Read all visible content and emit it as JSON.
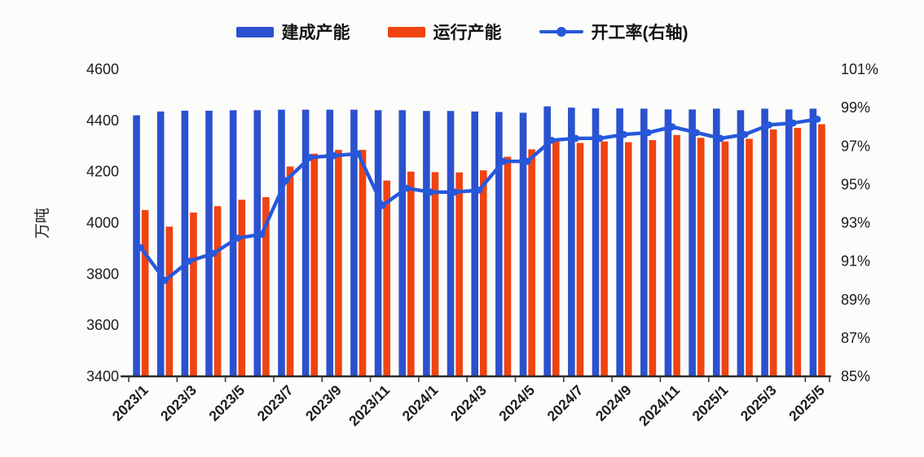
{
  "legend": [
    {
      "label": "建成产能",
      "marker": "bar",
      "color": "#2b51cf"
    },
    {
      "label": "运行产能",
      "marker": "bar",
      "color": "#f04310"
    },
    {
      "label": "开工率(右轴)",
      "marker": "line",
      "color": "#2658dc"
    }
  ],
  "left_axis": {
    "title": "万吨",
    "ticks": [
      "4600",
      "4400",
      "4200",
      "4000",
      "3800",
      "3600",
      "3400"
    ],
    "min": 3400,
    "max": 4600
  },
  "right_axis": {
    "ticks": [
      "101%",
      "99%",
      "97%",
      "95%",
      "93%",
      "91%",
      "89%",
      "87%",
      "85%"
    ],
    "min": 85,
    "max": 101
  },
  "chart_data": {
    "type": "bar",
    "subtype": "bar+line combo, line on secondary axis",
    "title": "",
    "xlabel": "",
    "ylabel": "万吨",
    "ylabel_right": "%",
    "grid": false,
    "legend_position": "top",
    "left_ylim": [
      3400,
      4600
    ],
    "right_ylim": [
      85,
      101
    ],
    "categories": [
      "2023/1",
      "2023/2",
      "2023/3",
      "2023/4",
      "2023/5",
      "2023/6",
      "2023/7",
      "2023/8",
      "2023/9",
      "2023/10",
      "2023/11",
      "2023/12",
      "2024/1",
      "2024/2",
      "2024/3",
      "2024/4",
      "2024/5",
      "2024/6",
      "2024/7",
      "2024/8",
      "2024/9",
      "2024/10",
      "2024/11",
      "2024/12",
      "2025/1",
      "2025/2",
      "2025/3",
      "2025/4",
      "2025/5"
    ],
    "x_tick_labels": [
      "2023/1",
      "2023/3",
      "2023/5",
      "2023/7",
      "2023/9",
      "2023/11",
      "2024/1",
      "2024/3",
      "2024/5",
      "2024/7",
      "2024/9",
      "2024/11",
      "2025/1",
      "2025/3",
      "2025/5"
    ],
    "series": [
      {
        "name": "建成产能",
        "type": "bar",
        "axis": "left",
        "color": "#2b51cf",
        "values": [
          4420,
          4435,
          4438,
          4438,
          4440,
          4440,
          4442,
          4442,
          4442,
          4442,
          4440,
          4440,
          4437,
          4437,
          4435,
          4433,
          4430,
          4455,
          4450,
          4447,
          4447,
          4446,
          4443,
          4443,
          4446,
          4440,
          4446,
          4443,
          4446
        ]
      },
      {
        "name": "运行产能",
        "type": "bar",
        "axis": "left",
        "color": "#f04310",
        "values": [
          4050,
          3985,
          4040,
          4065,
          4090,
          4100,
          4220,
          4270,
          4285,
          4285,
          4165,
          4200,
          4198,
          4197,
          4205,
          4258,
          4287,
          4318,
          4312,
          4318,
          4315,
          4323,
          4343,
          4332,
          4318,
          4328,
          4365,
          4371,
          4385
        ]
      },
      {
        "name": "开工率(右轴)",
        "type": "line",
        "axis": "right",
        "color": "#2658dc",
        "values": [
          91.7,
          90.0,
          91.0,
          91.4,
          92.2,
          92.4,
          95.2,
          96.4,
          96.5,
          96.6,
          93.9,
          94.8,
          94.6,
          94.6,
          94.7,
          96.2,
          96.2,
          97.3,
          97.4,
          97.4,
          97.6,
          97.7,
          98.0,
          97.7,
          97.4,
          97.6,
          98.1,
          98.2,
          98.4
        ]
      }
    ]
  }
}
